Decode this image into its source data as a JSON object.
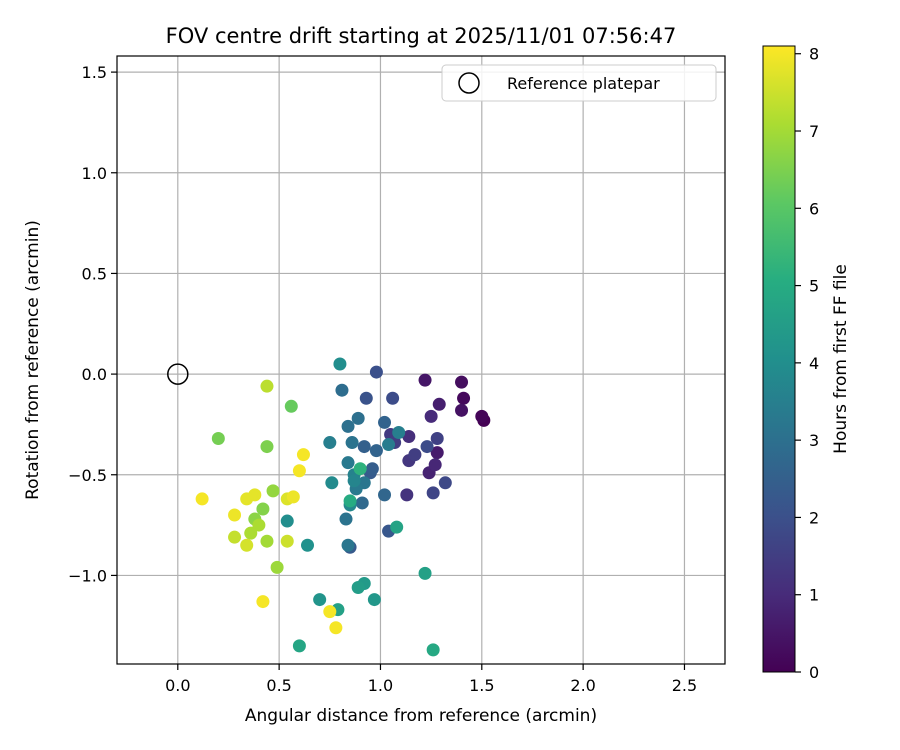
{
  "chart_data": {
    "type": "scatter",
    "title": "FOV centre drift starting at 2025/11/01 07:56:47",
    "xlabel": "Angular distance from reference (arcmin)",
    "ylabel": "Rotation from reference (arcmin)",
    "xlim": [
      -0.3,
      2.7
    ],
    "ylim": [
      -1.44,
      1.58
    ],
    "xticks": [
      0.0,
      0.5,
      1.0,
      1.5,
      2.0,
      2.5
    ],
    "xtick_labels": [
      "0.0",
      "0.5",
      "1.0",
      "1.5",
      "2.0",
      "2.5"
    ],
    "yticks": [
      -1.0,
      -0.5,
      0.0,
      0.5,
      1.0,
      1.5
    ],
    "ytick_labels": [
      "−1.0",
      "−0.5",
      "0.0",
      "0.5",
      "1.0",
      "1.5"
    ],
    "grid": true,
    "legend": {
      "position": "top-right",
      "entries": [
        "Reference platepar"
      ]
    },
    "reference_point": {
      "x": 0.0,
      "y": 0.0,
      "label": "Reference platepar"
    },
    "colorbar": {
      "label": "Hours from first FF file",
      "range": [
        0,
        8.1
      ],
      "ticks": [
        0,
        1,
        2,
        3,
        4,
        5,
        6,
        7,
        8
      ],
      "tick_labels": [
        "0",
        "1",
        "2",
        "3",
        "4",
        "5",
        "6",
        "7",
        "8"
      ],
      "colormap": "viridis"
    },
    "points": [
      {
        "x": 1.51,
        "y": -0.23,
        "h": 0.0
      },
      {
        "x": 1.5,
        "y": -0.21,
        "h": 0.1
      },
      {
        "x": 1.41,
        "y": -0.12,
        "h": 0.2
      },
      {
        "x": 1.4,
        "y": -0.04,
        "h": 0.3
      },
      {
        "x": 1.4,
        "y": -0.18,
        "h": 0.4
      },
      {
        "x": 1.22,
        "y": -0.03,
        "h": 0.5
      },
      {
        "x": 1.28,
        "y": -0.39,
        "h": 0.6
      },
      {
        "x": 1.29,
        "y": -0.15,
        "h": 0.7
      },
      {
        "x": 1.24,
        "y": -0.49,
        "h": 0.8
      },
      {
        "x": 1.27,
        "y": -0.45,
        "h": 0.9
      },
      {
        "x": 1.25,
        "y": -0.21,
        "h": 1.0
      },
      {
        "x": 1.14,
        "y": -0.31,
        "h": 1.1
      },
      {
        "x": 1.13,
        "y": -0.6,
        "h": 1.2
      },
      {
        "x": 1.14,
        "y": -0.43,
        "h": 1.3
      },
      {
        "x": 1.05,
        "y": -0.3,
        "h": 1.4
      },
      {
        "x": 1.07,
        "y": -0.34,
        "h": 1.5
      },
      {
        "x": 1.17,
        "y": -0.4,
        "h": 1.5
      },
      {
        "x": 1.28,
        "y": -0.32,
        "h": 1.6
      },
      {
        "x": 1.26,
        "y": -0.59,
        "h": 1.7
      },
      {
        "x": 1.32,
        "y": -0.54,
        "h": 1.8
      },
      {
        "x": 1.23,
        "y": -0.36,
        "h": 1.9
      },
      {
        "x": 1.06,
        "y": -0.12,
        "h": 1.9
      },
      {
        "x": 0.98,
        "y": 0.01,
        "h": 2.0
      },
      {
        "x": 0.93,
        "y": -0.12,
        "h": 2.1
      },
      {
        "x": 1.04,
        "y": -0.78,
        "h": 2.2
      },
      {
        "x": 0.85,
        "y": -0.86,
        "h": 2.3
      },
      {
        "x": 0.95,
        "y": -0.49,
        "h": 2.3
      },
      {
        "x": 0.96,
        "y": -0.47,
        "h": 2.4
      },
      {
        "x": 0.92,
        "y": -0.36,
        "h": 2.5
      },
      {
        "x": 0.98,
        "y": -0.38,
        "h": 2.6
      },
      {
        "x": 1.02,
        "y": -0.24,
        "h": 2.6
      },
      {
        "x": 1.02,
        "y": -0.6,
        "h": 2.7
      },
      {
        "x": 0.91,
        "y": -0.64,
        "h": 2.8
      },
      {
        "x": 0.81,
        "y": -0.08,
        "h": 2.9
      },
      {
        "x": 0.84,
        "y": -0.26,
        "h": 3.0
      },
      {
        "x": 0.89,
        "y": -0.22,
        "h": 3.0
      },
      {
        "x": 0.86,
        "y": -0.34,
        "h": 3.1
      },
      {
        "x": 0.83,
        "y": -0.72,
        "h": 3.1
      },
      {
        "x": 0.84,
        "y": -0.85,
        "h": 3.2
      },
      {
        "x": 0.92,
        "y": -0.54,
        "h": 3.2
      },
      {
        "x": 0.88,
        "y": -0.57,
        "h": 3.3
      },
      {
        "x": 0.84,
        "y": -0.44,
        "h": 3.3
      },
      {
        "x": 1.04,
        "y": -0.35,
        "h": 3.4
      },
      {
        "x": 1.09,
        "y": -0.29,
        "h": 3.5
      },
      {
        "x": 0.75,
        "y": -0.34,
        "h": 3.5
      },
      {
        "x": 0.87,
        "y": -0.5,
        "h": 3.6
      },
      {
        "x": 0.87,
        "y": -0.53,
        "h": 3.7
      },
      {
        "x": 0.85,
        "y": -0.65,
        "h": 3.8
      },
      {
        "x": 0.76,
        "y": -0.54,
        "h": 3.9
      },
      {
        "x": 0.8,
        "y": 0.05,
        "h": 4.0
      },
      {
        "x": 0.54,
        "y": -0.73,
        "h": 4.0
      },
      {
        "x": 0.64,
        "y": -0.85,
        "h": 4.1
      },
      {
        "x": 0.7,
        "y": -1.12,
        "h": 4.2
      },
      {
        "x": 0.97,
        "y": -1.12,
        "h": 4.3
      },
      {
        "x": 0.92,
        "y": -1.04,
        "h": 4.4
      },
      {
        "x": 0.89,
        "y": -1.06,
        "h": 4.5
      },
      {
        "x": 0.79,
        "y": -1.17,
        "h": 4.6
      },
      {
        "x": 1.22,
        "y": -0.99,
        "h": 4.6
      },
      {
        "x": 1.08,
        "y": -0.76,
        "h": 4.7
      },
      {
        "x": 0.6,
        "y": -1.35,
        "h": 4.8
      },
      {
        "x": 1.26,
        "y": -1.37,
        "h": 4.9
      },
      {
        "x": 0.85,
        "y": -0.63,
        "h": 5.0
      },
      {
        "x": 0.9,
        "y": -0.47,
        "h": 5.2
      },
      {
        "x": 0.56,
        "y": -0.16,
        "h": 6.2
      },
      {
        "x": 0.2,
        "y": -0.32,
        "h": 6.4
      },
      {
        "x": 0.44,
        "y": -0.36,
        "h": 6.5
      },
      {
        "x": 0.42,
        "y": -0.67,
        "h": 6.6
      },
      {
        "x": 0.38,
        "y": -0.72,
        "h": 6.7
      },
      {
        "x": 0.47,
        "y": -0.58,
        "h": 6.8
      },
      {
        "x": 0.49,
        "y": -0.96,
        "h": 6.9
      },
      {
        "x": 0.44,
        "y": -0.83,
        "h": 7.0
      },
      {
        "x": 0.4,
        "y": -0.75,
        "h": 7.1
      },
      {
        "x": 0.36,
        "y": -0.79,
        "h": 7.1
      },
      {
        "x": 0.44,
        "y": -0.06,
        "h": 7.3
      },
      {
        "x": 0.28,
        "y": -0.81,
        "h": 7.4
      },
      {
        "x": 0.54,
        "y": -0.83,
        "h": 7.5
      },
      {
        "x": 0.34,
        "y": -0.85,
        "h": 7.6
      },
      {
        "x": 0.54,
        "y": -0.62,
        "h": 7.7
      },
      {
        "x": 0.38,
        "y": -0.6,
        "h": 7.8
      },
      {
        "x": 0.34,
        "y": -0.62,
        "h": 7.8
      },
      {
        "x": 0.28,
        "y": -0.7,
        "h": 7.9
      },
      {
        "x": 0.57,
        "y": -0.61,
        "h": 7.9
      },
      {
        "x": 0.6,
        "y": -0.48,
        "h": 8.0
      },
      {
        "x": 0.62,
        "y": -0.4,
        "h": 8.0
      },
      {
        "x": 0.12,
        "y": -0.62,
        "h": 8.0
      },
      {
        "x": 0.42,
        "y": -1.13,
        "h": 8.0
      },
      {
        "x": 0.75,
        "y": -1.18,
        "h": 8.0
      },
      {
        "x": 0.78,
        "y": -1.26,
        "h": 8.0
      }
    ]
  }
}
